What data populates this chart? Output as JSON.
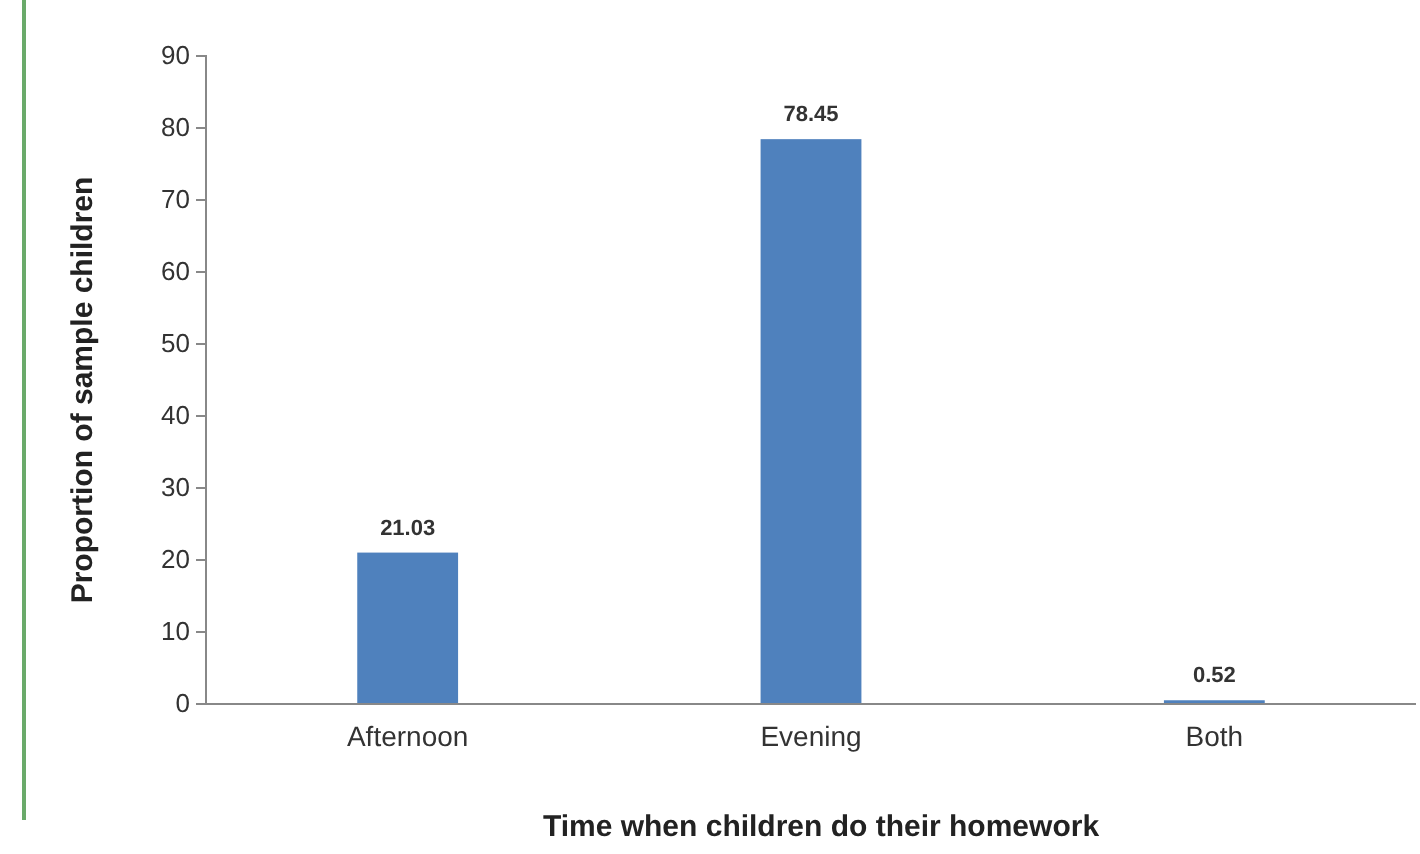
{
  "chart_data": {
    "type": "bar",
    "xlabel": "Time when children do their homework",
    "ylabel": "Proportion of sample children",
    "categories": [
      "Afternoon",
      "Evening",
      "Both"
    ],
    "values": [
      21.03,
      78.45,
      0.52
    ],
    "color": "#4f81bd",
    "ylim": [
      0,
      90
    ],
    "yticks": [
      0,
      10,
      20,
      30,
      40,
      50,
      60,
      70,
      80,
      90
    ],
    "grid": false,
    "data_labels": true
  }
}
